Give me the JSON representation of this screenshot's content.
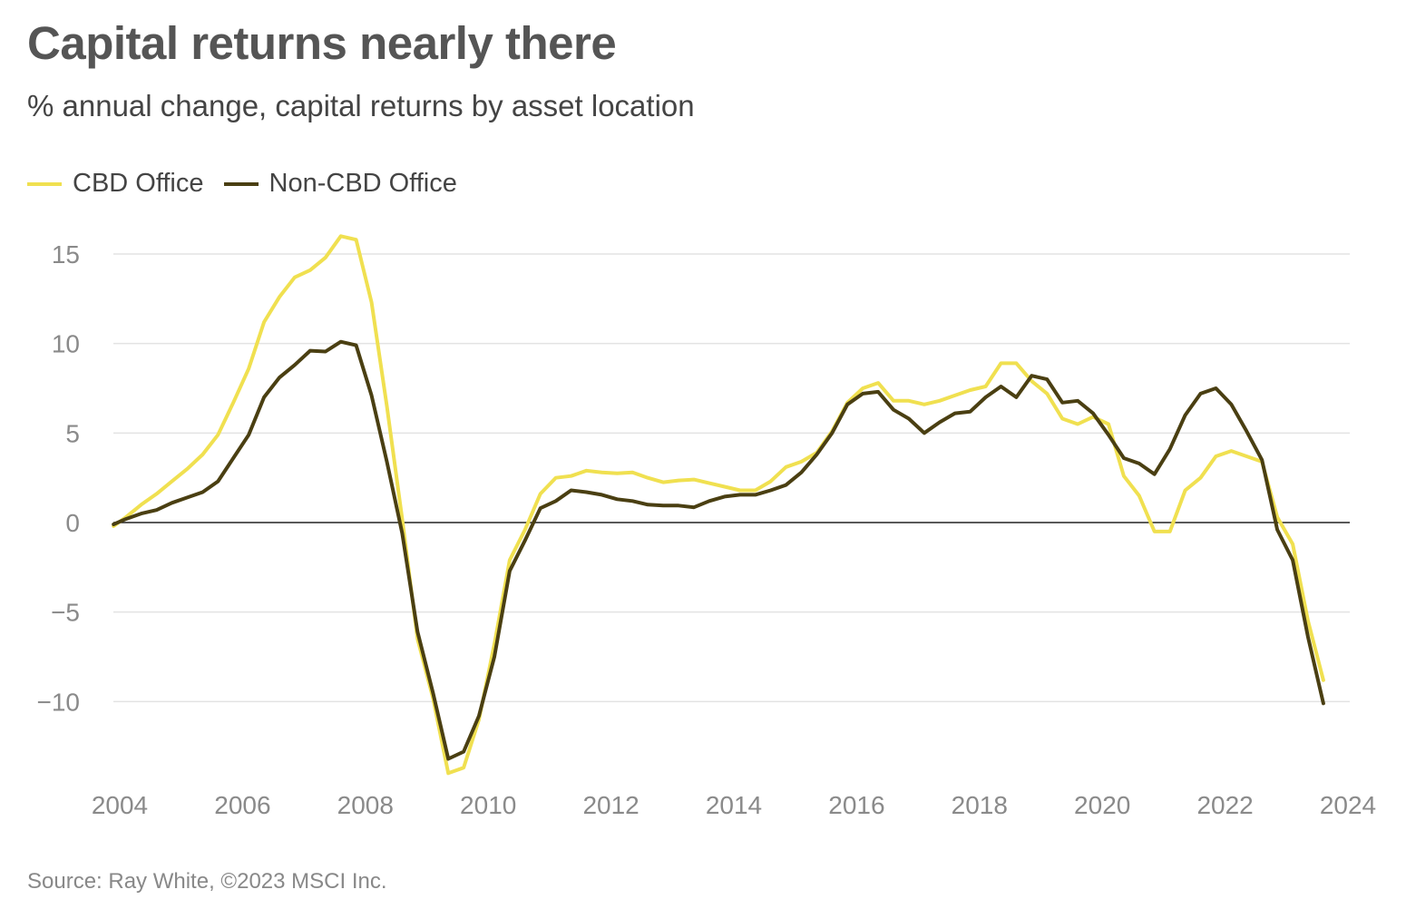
{
  "title": "Capital returns nearly there",
  "subtitle": "% annual change, capital returns by asset location",
  "source": "Source: Ray White, ©2023 MSCI Inc.",
  "chart_data": {
    "type": "line",
    "title": "Capital returns nearly there",
    "subtitle": "% annual change, capital returns by asset location",
    "xlabel": "",
    "ylabel": "",
    "xlim": [
      2003.9,
      2024.0
    ],
    "ylim": [
      -14.8,
      16.5
    ],
    "x_ticks": [
      "2004",
      "2006",
      "2008",
      "2010",
      "2012",
      "2014",
      "2016",
      "2018",
      "2020",
      "2022",
      "2024"
    ],
    "x_tick_values": [
      2004,
      2006,
      2008,
      2010,
      2012,
      2014,
      2016,
      2018,
      2020,
      2022,
      2024
    ],
    "y_ticks": [
      "15",
      "10",
      "5",
      "0",
      "−5",
      "−10"
    ],
    "y_tick_values": [
      15,
      10,
      5,
      0,
      -5,
      -10
    ],
    "grid": true,
    "zero_line": true,
    "legend_position": "top-left",
    "series": [
      {
        "name": "CBD Office",
        "color": "#f0e050",
        "x": [
          2003.9,
          2004.1,
          2004.35,
          2004.6,
          2004.85,
          2005.1,
          2005.35,
          2005.6,
          2005.85,
          2006.1,
          2006.35,
          2006.6,
          2006.85,
          2007.1,
          2007.35,
          2007.6,
          2007.85,
          2008.1,
          2008.35,
          2008.6,
          2008.85,
          2009.1,
          2009.35,
          2009.6,
          2009.85,
          2010.1,
          2010.35,
          2010.6,
          2010.85,
          2011.1,
          2011.35,
          2011.6,
          2011.85,
          2012.1,
          2012.35,
          2012.6,
          2012.85,
          2013.1,
          2013.35,
          2013.6,
          2013.85,
          2014.1,
          2014.35,
          2014.6,
          2014.85,
          2015.1,
          2015.35,
          2015.6,
          2015.85,
          2016.1,
          2016.35,
          2016.6,
          2016.85,
          2017.1,
          2017.35,
          2017.6,
          2017.85,
          2018.1,
          2018.35,
          2018.6,
          2018.85,
          2019.1,
          2019.35,
          2019.6,
          2019.85,
          2020.1,
          2020.35,
          2020.6,
          2020.85,
          2021.1,
          2021.35,
          2021.6,
          2021.85,
          2022.1,
          2022.35,
          2022.6,
          2022.85,
          2023.1,
          2023.35,
          2023.6
        ],
        "y": [
          -0.2,
          0.3,
          1.0,
          1.6,
          2.3,
          3.0,
          3.8,
          4.9,
          6.7,
          8.6,
          11.2,
          12.6,
          13.7,
          14.1,
          14.8,
          16.0,
          15.8,
          12.3,
          6.5,
          0.2,
          -6.5,
          -9.8,
          -14.0,
          -13.7,
          -11.0,
          -6.8,
          -2.1,
          -0.4,
          1.6,
          2.5,
          2.6,
          2.9,
          2.8,
          2.75,
          2.8,
          2.5,
          2.25,
          2.35,
          2.4,
          2.2,
          2.0,
          1.8,
          1.8,
          2.3,
          3.1,
          3.4,
          3.9,
          5.1,
          6.7,
          7.5,
          7.8,
          6.8,
          6.8,
          6.6,
          6.8,
          7.1,
          7.4,
          7.6,
          8.9,
          8.9,
          7.9,
          7.2,
          5.8,
          5.5,
          5.9,
          5.5,
          2.6,
          1.5,
          -0.5,
          -0.5,
          1.8,
          2.5,
          3.7,
          4.0,
          3.7,
          3.4,
          0.3,
          -1.2,
          -5.5,
          -8.8
        ]
      },
      {
        "name": "Non-CBD Office",
        "color": "#4a3f12",
        "x": [
          2003.9,
          2004.1,
          2004.35,
          2004.6,
          2004.85,
          2005.1,
          2005.35,
          2005.6,
          2005.85,
          2006.1,
          2006.35,
          2006.6,
          2006.85,
          2007.1,
          2007.35,
          2007.6,
          2007.85,
          2008.1,
          2008.35,
          2008.6,
          2008.85,
          2009.1,
          2009.35,
          2009.6,
          2009.85,
          2010.1,
          2010.35,
          2010.6,
          2010.85,
          2011.1,
          2011.35,
          2011.6,
          2011.85,
          2012.1,
          2012.35,
          2012.6,
          2012.85,
          2013.1,
          2013.35,
          2013.6,
          2013.85,
          2014.1,
          2014.35,
          2014.6,
          2014.85,
          2015.1,
          2015.35,
          2015.6,
          2015.85,
          2016.1,
          2016.35,
          2016.6,
          2016.85,
          2017.1,
          2017.35,
          2017.6,
          2017.85,
          2018.1,
          2018.35,
          2018.6,
          2018.85,
          2019.1,
          2019.35,
          2019.6,
          2019.85,
          2020.1,
          2020.35,
          2020.6,
          2020.85,
          2021.1,
          2021.35,
          2021.6,
          2021.85,
          2022.1,
          2022.35,
          2022.6,
          2022.85,
          2023.1,
          2023.35,
          2023.6
        ],
        "y": [
          -0.1,
          0.2,
          0.5,
          0.7,
          1.1,
          1.4,
          1.7,
          2.3,
          3.6,
          4.9,
          7.0,
          8.1,
          8.8,
          9.6,
          9.55,
          10.1,
          9.9,
          7.1,
          3.4,
          -0.6,
          -6.1,
          -9.5,
          -13.2,
          -12.8,
          -10.8,
          -7.5,
          -2.7,
          -1.0,
          0.8,
          1.2,
          1.8,
          1.7,
          1.55,
          1.3,
          1.2,
          1.0,
          0.95,
          0.95,
          0.85,
          1.2,
          1.45,
          1.55,
          1.55,
          1.8,
          2.1,
          2.8,
          3.8,
          5.0,
          6.6,
          7.2,
          7.3,
          6.3,
          5.8,
          5.0,
          5.6,
          6.1,
          6.2,
          7.0,
          7.6,
          7.0,
          8.2,
          8.0,
          6.7,
          6.8,
          6.1,
          4.9,
          3.6,
          3.3,
          2.7,
          4.1,
          6.0,
          7.2,
          7.5,
          6.6,
          5.1,
          3.5,
          -0.4,
          -2.1,
          -6.4,
          -10.1
        ]
      }
    ]
  }
}
